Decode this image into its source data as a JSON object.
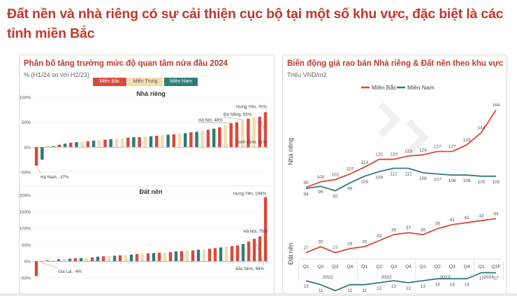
{
  "headline": "Đất nền và nhà riêng có sự cải thiện cục bộ tại một số khu vực, đặc biệt là các tỉnh miền Bắc",
  "colors": {
    "north": "#d94a3a",
    "central": "#f2dcb0",
    "south": "#2e7d78"
  },
  "left": {
    "title": "Phân bố tăng trưởng mức độ quan tâm nửa đầu 2024",
    "subtitle": "% (H1/24 so với H2/23)",
    "legend": [
      "Miền Bắc",
      "Miền Trung",
      "Miền Nam"
    ]
  },
  "right": {
    "title": "Biến động giá rao bán Nhà riêng & Đất nền theo khu vực",
    "subtitle": "Triệu VND/m2"
  },
  "chart_data": [
    {
      "type": "bar",
      "title": "Nhà riêng",
      "ylim": [
        -50,
        100
      ],
      "yticks": [
        "100%",
        "50%",
        "0%",
        "-50%"
      ],
      "legend": [
        "Miền Bắc",
        "Miền Trung",
        "Miền Nam"
      ],
      "values": [
        -37,
        -25,
        1,
        2,
        5,
        7,
        9,
        10,
        11,
        12,
        13,
        14,
        15,
        16,
        17,
        18,
        19,
        20,
        20,
        21,
        22,
        23,
        24,
        25,
        26,
        27,
        28,
        30,
        31,
        33,
        35,
        37,
        40,
        44,
        48,
        50,
        55,
        57,
        60,
        61,
        70
      ],
      "regions": [
        "N",
        "S",
        "S",
        "S",
        "N",
        "S",
        "N",
        "S",
        "C",
        "N",
        "S",
        "C",
        "N",
        "S",
        "C",
        "C",
        "N",
        "S",
        "N",
        "C",
        "S",
        "N",
        "C",
        "S",
        "N",
        "C",
        "S",
        "N",
        "S",
        "C",
        "N",
        "S",
        "N",
        "C",
        "N",
        "N",
        "C",
        "N",
        "C",
        "N",
        "N"
      ],
      "annotations": [
        {
          "label": "Hà Nam, -37%"
        },
        {
          "label": "Hà Nội, 48%"
        },
        {
          "label": "Đà Nẵng, 55%"
        },
        {
          "label": "Hưng Yên, 70%"
        },
        {
          "label": "Ninh Bình, 61%"
        }
      ]
    },
    {
      "type": "bar",
      "title": "Đất nền",
      "ylim": [
        -50,
        200
      ],
      "yticks": [
        "200%",
        "150%",
        "100%",
        "50%",
        "0%",
        "-50%"
      ],
      "legend": [
        "Miền Bắc",
        "Miền Trung",
        "Miền Nam"
      ],
      "values": [
        -45,
        -4,
        3,
        4,
        6,
        7,
        8,
        9,
        10,
        11,
        12,
        14,
        15,
        16,
        17,
        18,
        19,
        20,
        22,
        23,
        24,
        25,
        26,
        27,
        28,
        30,
        31,
        32,
        33,
        35,
        36,
        38,
        40,
        42,
        44,
        46,
        48,
        52,
        60,
        68,
        75,
        194
      ],
      "regions": [
        "N",
        "C",
        "N",
        "C",
        "S",
        "C",
        "S",
        "N",
        "S",
        "C",
        "N",
        "S",
        "N",
        "C",
        "S",
        "N",
        "C",
        "S",
        "N",
        "C",
        "N",
        "S",
        "N",
        "C",
        "N",
        "S",
        "N",
        "C",
        "N",
        "S",
        "C",
        "N",
        "N",
        "S",
        "C",
        "N",
        "N",
        "S",
        "N",
        "N",
        "N",
        "N"
      ],
      "annotations": [
        {
          "label": "Gia Lai, -4%"
        },
        {
          "label": "Hưng Yên, 194%"
        },
        {
          "label": "Hà Nội, 75%"
        },
        {
          "label": "Bắc Ninh, 68%"
        }
      ]
    },
    {
      "type": "line",
      "title": "Nhà riêng",
      "x": [
        "Q1 2021",
        "Q2 2021",
        "Q3 2021",
        "Q4 2021",
        "Q1 2022",
        "Q2 2022",
        "Q3 2022",
        "Q4 2022",
        "Q1 2023",
        "Q2 2023",
        "Q3 2023",
        "Q4 2023",
        "Q1 2024",
        "Q2F 2024"
      ],
      "series": [
        {
          "name": "Miền Bắc",
          "values": [
            95,
            100,
            102,
            107,
            113,
            120,
            120,
            123,
            124,
            127,
            127,
            133,
            144,
            164
          ]
        },
        {
          "name": "Miền Nam",
          "values": [
            94,
            96,
            92,
            99,
            105,
            109,
            112,
            112,
            108,
            107,
            106,
            106,
            105,
            105
          ]
        }
      ]
    },
    {
      "type": "line",
      "title": "Đất nền",
      "x": [
        "Q1 2021",
        "Q2 2021",
        "Q3 2021",
        "Q4 2021",
        "Q1 2022",
        "Q2 2022",
        "Q3 2022",
        "Q4 2022",
        "Q1 2023",
        "Q2 2023",
        "Q3 2023",
        "Q4 2023",
        "Q1 2024",
        "Q2F 2024"
      ],
      "quarters": [
        "Q1",
        "Q2",
        "Q3",
        "Q4",
        "Q1",
        "Q2",
        "Q3",
        "Q4",
        "Q1",
        "Q2",
        "Q3",
        "Q4",
        "Q1",
        "Q2F"
      ],
      "years": [
        "2021",
        "2022",
        "2023",
        "2024"
      ],
      "series": [
        {
          "name": "Miền Bắc",
          "values": [
            27,
            30,
            27,
            29,
            30,
            33,
            36,
            37,
            36,
            39,
            41,
            42,
            43,
            44
          ]
        },
        {
          "name": "Miền Nam",
          "values": [
            13,
            11,
            8,
            11,
            11,
            12,
            13,
            12,
            13,
            14,
            14,
            14,
            17,
            17
          ]
        }
      ]
    }
  ]
}
